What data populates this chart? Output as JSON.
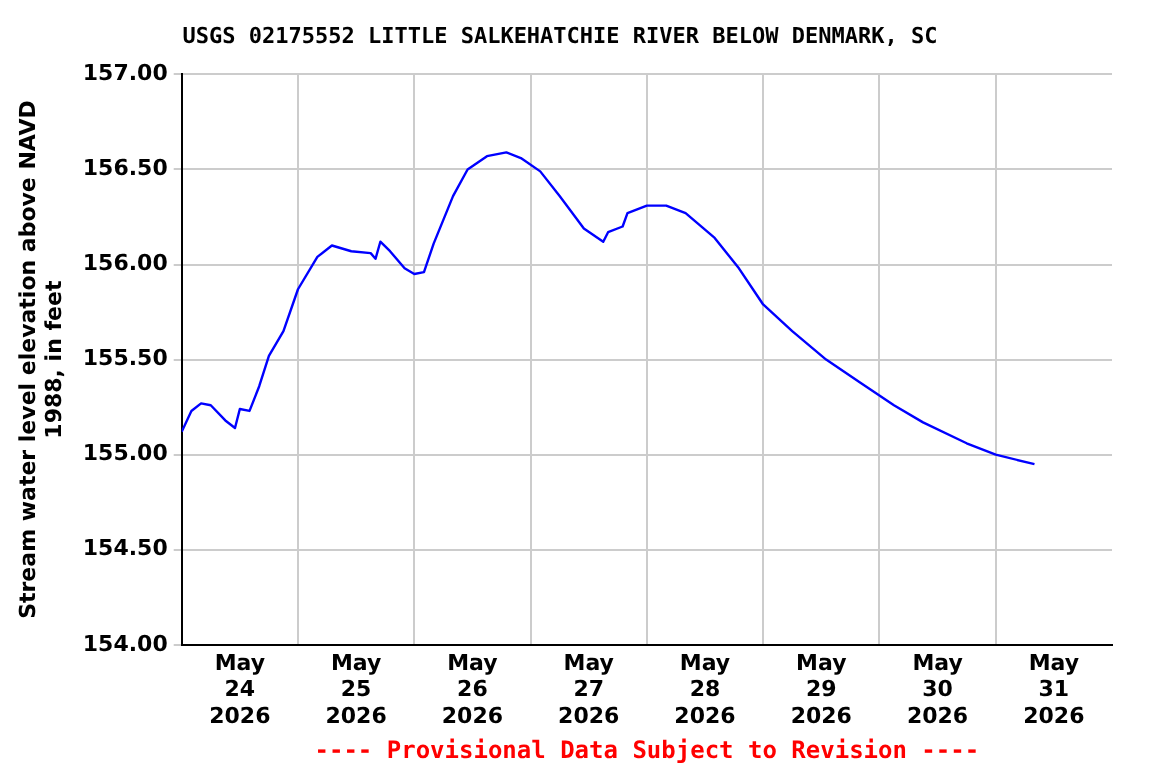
{
  "chart_data": {
    "type": "line",
    "title": "USGS 02175552 LITTLE SALKEHATCHIE RIVER BELOW DENMARK, SC",
    "ylabel": "Stream water level elevation above NAVD 1988, in feet",
    "annotations": [
      "---- Provisional Data Subject to Revision ----"
    ],
    "x": [
      "2026-05-24T00:00",
      "2026-05-24T02:00",
      "2026-05-24T04:00",
      "2026-05-24T06:00",
      "2026-05-24T09:00",
      "2026-05-24T11:00",
      "2026-05-24T12:00",
      "2026-05-24T14:00",
      "2026-05-24T16:00",
      "2026-05-24T18:00",
      "2026-05-24T21:00",
      "2026-05-25T00:00",
      "2026-05-25T04:00",
      "2026-05-25T07:00",
      "2026-05-25T11:00",
      "2026-05-25T15:00",
      "2026-05-25T16:00",
      "2026-05-25T17:00",
      "2026-05-25T19:00",
      "2026-05-25T22:00",
      "2026-05-26T00:00",
      "2026-05-26T02:00",
      "2026-05-26T04:00",
      "2026-05-26T08:00",
      "2026-05-26T11:00",
      "2026-05-26T15:00",
      "2026-05-26T19:00",
      "2026-05-26T22:00",
      "2026-05-27T02:00",
      "2026-05-27T06:00",
      "2026-05-27T11:00",
      "2026-05-27T15:00",
      "2026-05-27T16:00",
      "2026-05-27T19:00",
      "2026-05-27T20:00",
      "2026-05-28T00:00",
      "2026-05-28T04:00",
      "2026-05-28T08:00",
      "2026-05-28T14:00",
      "2026-05-28T19:00",
      "2026-05-29T00:00",
      "2026-05-29T06:00",
      "2026-05-29T13:00",
      "2026-05-29T20:00",
      "2026-05-30T03:00",
      "2026-05-30T09:00",
      "2026-05-30T18:00",
      "2026-05-31T00:00",
      "2026-05-31T08:00"
    ],
    "series": [
      {
        "color": "#0000ff",
        "values": [
          155.12,
          155.23,
          155.27,
          155.26,
          155.18,
          155.14,
          155.24,
          155.23,
          155.36,
          155.52,
          155.65,
          155.87,
          156.04,
          156.1,
          156.07,
          156.06,
          156.03,
          156.12,
          156.07,
          155.98,
          155.95,
          155.96,
          156.11,
          156.36,
          156.5,
          156.57,
          156.59,
          156.56,
          156.49,
          156.36,
          156.19,
          156.12,
          156.17,
          156.2,
          156.27,
          156.31,
          156.31,
          156.27,
          156.14,
          155.98,
          155.79,
          155.65,
          155.5,
          155.38,
          155.26,
          155.17,
          155.06,
          155.0,
          154.95
        ]
      }
    ],
    "xlim": [
      "2026-05-24T00:00",
      "2026-06-01T00:00"
    ],
    "xticks": [
      {
        "value": "2026-05-24T12:00",
        "label": "May\n24\n2026"
      },
      {
        "value": "2026-05-25T00:00",
        "label": null
      },
      {
        "value": "2026-05-25T12:00",
        "label": "May\n25\n2026"
      },
      {
        "value": "2026-05-26T00:00",
        "label": null
      },
      {
        "value": "2026-05-26T12:00",
        "label": "May\n26\n2026"
      },
      {
        "value": "2026-05-27T00:00",
        "label": null
      },
      {
        "value": "2026-05-27T12:00",
        "label": "May\n27\n2026"
      },
      {
        "value": "2026-05-28T00:00",
        "label": null
      },
      {
        "value": "2026-05-28T12:00",
        "label": "May\n28\n2026"
      },
      {
        "value": "2026-05-29T00:00",
        "label": null
      },
      {
        "value": "2026-05-29T12:00",
        "label": "May\n29\n2026"
      },
      {
        "value": "2026-05-30T00:00",
        "label": null
      },
      {
        "value": "2026-05-30T12:00",
        "label": "May\n30\n2026"
      },
      {
        "value": "2026-05-31T00:00",
        "label": null
      },
      {
        "value": "2026-05-31T12:00",
        "label": "May\n31\n2026"
      }
    ],
    "ylim": [
      154,
      157
    ],
    "yticks": [
      {
        "value": 154,
        "label": "154.00"
      },
      {
        "value": 154.5,
        "label": "154.50"
      },
      {
        "value": 155,
        "label": "155.00"
      },
      {
        "value": 155.5,
        "label": "155.50"
      },
      {
        "value": 156,
        "label": "156.00"
      },
      {
        "value": 156.5,
        "label": "156.50"
      },
      {
        "value": 157,
        "label": "157.00"
      }
    ],
    "grid": true,
    "legend": false,
    "marker": "none",
    "line_style": "solid"
  }
}
